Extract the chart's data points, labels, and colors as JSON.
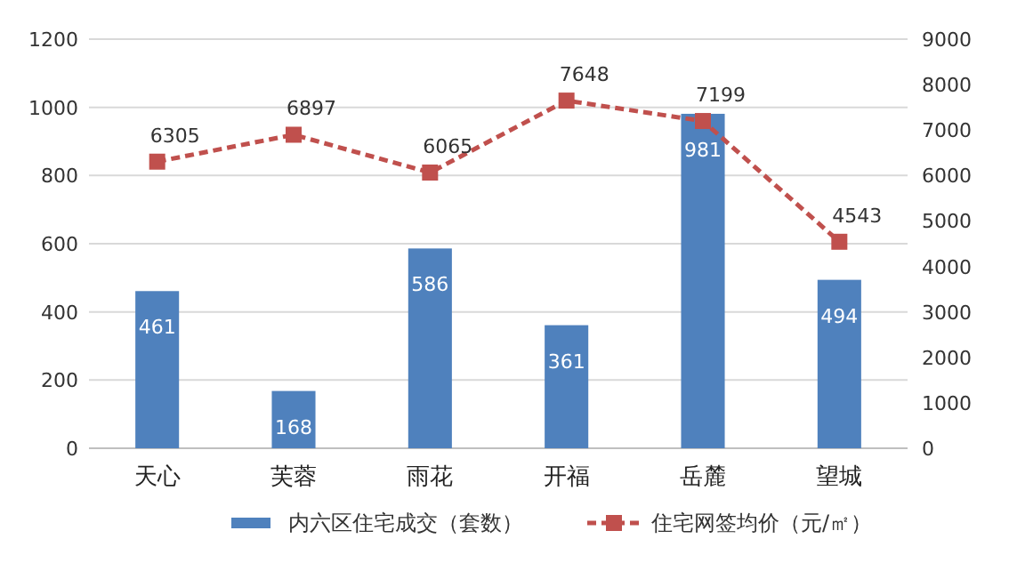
{
  "chart_data": {
    "type": "bar",
    "categories": [
      "天心",
      "芙蓉",
      "雨花",
      "开福",
      "岳麓",
      "望城"
    ],
    "series": [
      {
        "name": "内六区住宅成交（套数）",
        "color": "#4f81bd",
        "values": [
          461,
          168,
          586,
          361,
          981,
          494
        ]
      },
      {
        "name": "住宅网签均价（元/㎡）",
        "type": "line",
        "axis": "y2",
        "color": "#c0504d",
        "marker": "square",
        "line_style": "dashed",
        "values": [
          6305,
          6897,
          6065,
          7648,
          7199,
          4543
        ]
      }
    ],
    "ylim": [
      0,
      1200
    ],
    "yticks": [
      0,
      200,
      400,
      600,
      800,
      1000,
      1200
    ],
    "y2lim": [
      0,
      9000
    ],
    "y2ticks": [
      0,
      1000,
      2000,
      3000,
      4000,
      5000,
      6000,
      7000,
      8000,
      9000
    ],
    "grid": "y",
    "legend": "bottom",
    "data_labels": true
  }
}
